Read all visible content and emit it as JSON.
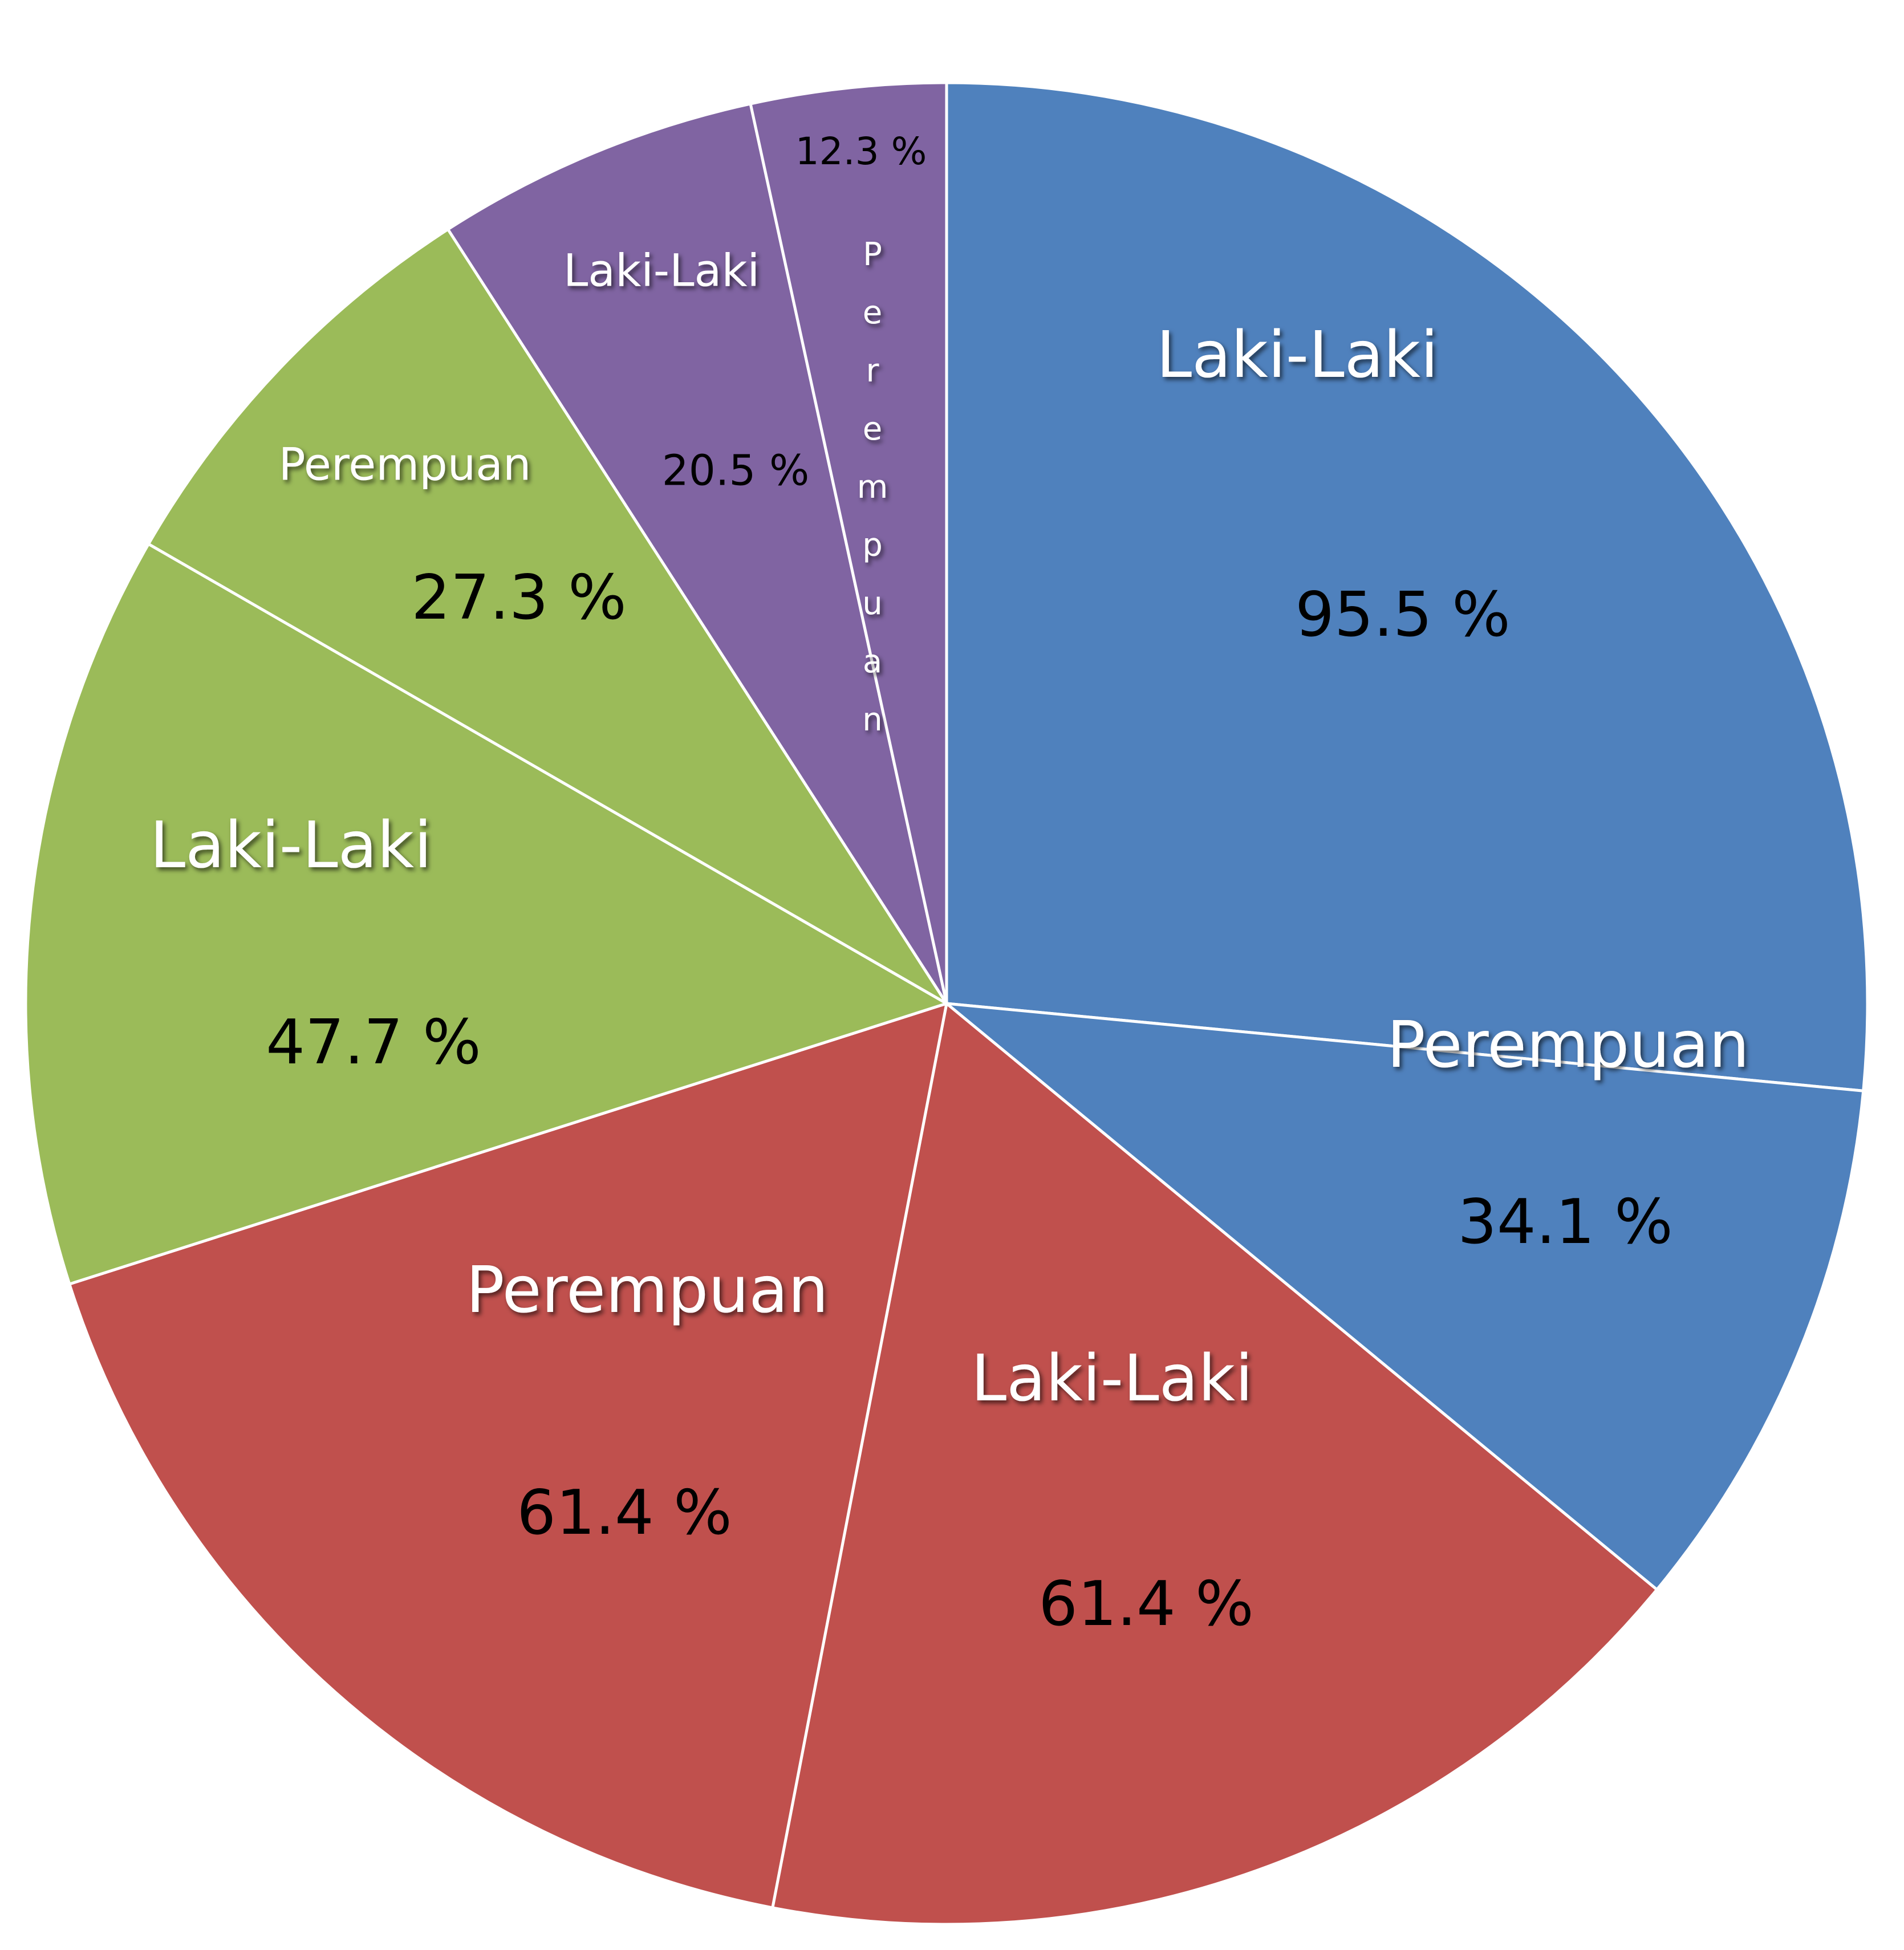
{
  "chart_data": {
    "type": "pie",
    "title": "",
    "legend": "none",
    "slices": [
      {
        "label": "Laki-Laki",
        "value_label": "95.5 %",
        "value": 95.5,
        "color": "#4f81bd"
      },
      {
        "label": "Perempuan",
        "value_label": "34.1 %",
        "value": 34.1,
        "color": "#4f81bd"
      },
      {
        "label": "Laki-Laki",
        "value_label": "61.4 %",
        "value": 61.4,
        "color": "#c0504d"
      },
      {
        "label": "Perempuan",
        "value_label": "61.4 %",
        "value": 61.4,
        "color": "#c0504d"
      },
      {
        "label": "Laki-Laki",
        "value_label": "47.7 %",
        "value": 47.7,
        "color": "#9bbb59"
      },
      {
        "label": "Perempuan",
        "value_label": "27.3 %",
        "value": 27.3,
        "color": "#9bbb59"
      },
      {
        "label": "Laki-Laki",
        "value_label": "20.5 %",
        "value": 20.5,
        "color": "#8064a2"
      },
      {
        "label": "Perempuan",
        "value_label": "12.3 %",
        "value": 12.3,
        "color": "#8064a2"
      }
    ]
  }
}
